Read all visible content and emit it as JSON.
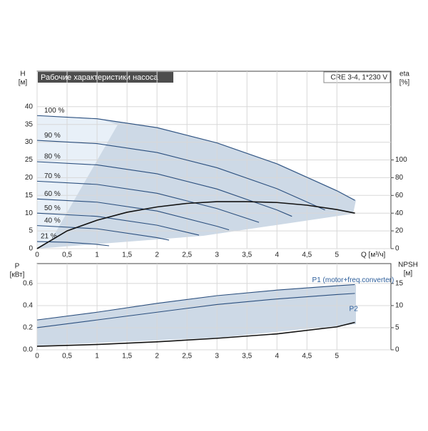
{
  "chart_data": [
    {
      "type": "line",
      "title": "Рабочие характеристики насоса",
      "subtitle": "CRE 3-4, 1*230 V",
      "ylabel": "H",
      "yunit": "[м]",
      "y2label": "eta",
      "y2unit": "[%]",
      "xlabel": "Q [м³/ч]",
      "xlim": [
        0,
        5.9
      ],
      "ylim": [
        0,
        50
      ],
      "y2lim": [
        0,
        200
      ],
      "grid": true,
      "xticks": [
        0,
        {
          "value": 0.5,
          "label": "0,5"
        },
        1,
        {
          "value": 1.5,
          "label": "1,5"
        },
        2,
        {
          "value": 2.5,
          "label": "2,5"
        },
        3,
        {
          "value": 3.5,
          "label": "3,5"
        },
        4,
        {
          "value": 4.5,
          "label": "4,5"
        },
        5
      ],
      "yticks": [
        0,
        5,
        10,
        15,
        20,
        25,
        30,
        35,
        40
      ],
      "y2ticks": [
        0,
        20,
        40,
        60,
        80,
        100
      ],
      "series": [
        {
          "name": "100 %",
          "color": "#2b4f7e",
          "x": [
            0,
            1,
            2,
            3,
            4,
            5,
            5.3
          ],
          "values": [
            37.5,
            36.6,
            34.1,
            29.8,
            23.9,
            16.3,
            13.6
          ]
        },
        {
          "name": "90 %",
          "color": "#2b4f7e",
          "x": [
            0,
            1,
            2,
            3,
            4,
            4.8
          ],
          "values": [
            30.5,
            29.6,
            27.1,
            22.8,
            16.9,
            10.9
          ]
        },
        {
          "name": "80 %",
          "color": "#2b4f7e",
          "x": [
            0,
            1,
            2,
            3,
            4,
            4.25
          ],
          "values": [
            24.5,
            23.6,
            21.1,
            16.8,
            10.9,
            9.1
          ]
        },
        {
          "name": "70 %",
          "color": "#2b4f7e",
          "x": [
            0,
            1,
            2,
            3,
            3.7
          ],
          "values": [
            19,
            18.1,
            15.6,
            11.3,
            7.4
          ]
        },
        {
          "name": "60 %",
          "color": "#2b4f7e",
          "x": [
            0,
            1,
            2,
            3,
            3.2
          ],
          "values": [
            14,
            13.1,
            10.6,
            6.3,
            5.3
          ]
        },
        {
          "name": "50 %",
          "color": "#2b4f7e",
          "x": [
            0,
            1,
            2,
            2.7
          ],
          "values": [
            10,
            9.1,
            6.6,
            3.8
          ]
        },
        {
          "name": "40 %",
          "color": "#2b4f7e",
          "x": [
            0,
            1,
            2,
            2.2
          ],
          "values": [
            6.5,
            5.6,
            3.1,
            2.4
          ]
        },
        {
          "name": "21 %",
          "color": "#2b4f7e",
          "x": [
            0,
            0.5,
            1,
            1.2
          ],
          "values": [
            2,
            1.8,
            1.2,
            0.8
          ]
        },
        {
          "color": "#111111",
          "axis": "y2",
          "x": [
            0,
            0.5,
            1,
            1.5,
            2,
            2.5,
            3,
            3.5,
            4,
            4.5,
            5,
            5.3
          ],
          "values": [
            0,
            20,
            32,
            41,
            47,
            51,
            53,
            53,
            52,
            49,
            44,
            40
          ]
        }
      ]
    },
    {
      "type": "line",
      "ylabel": "P",
      "yunit": "[кВт]",
      "y2label": "NPSH",
      "y2unit": "[м]",
      "xlim": [
        0,
        5.9
      ],
      "ylim": [
        0,
        0.78
      ],
      "y2lim": [
        0,
        19.5
      ],
      "grid": true,
      "xticks": [
        0,
        {
          "value": 0.5,
          "label": "0,5"
        },
        1,
        {
          "value": 1.5,
          "label": "1,5"
        },
        2,
        {
          "value": 2.5,
          "label": "2,5"
        },
        3,
        {
          "value": 3.5,
          "label": "3,5"
        },
        4,
        {
          "value": 4.5,
          "label": "4,5"
        },
        5
      ],
      "yticks": [
        {
          "value": 0,
          "label": "0.0"
        },
        0.2,
        0.4,
        0.6
      ],
      "y2ticks": [
        0,
        5,
        10,
        15
      ],
      "series": [
        {
          "name": "P1 (motor+freq.converter)",
          "color": "#2b4f7e",
          "x": [
            0,
            1,
            2,
            3,
            4,
            5,
            5.3
          ],
          "values": [
            0.27,
            0.34,
            0.42,
            0.49,
            0.54,
            0.58,
            0.59
          ]
        },
        {
          "name": "P2",
          "color": "#2b4f7e",
          "x": [
            0,
            1,
            2,
            3,
            4,
            5,
            5.3
          ],
          "values": [
            0.2,
            0.27,
            0.34,
            0.41,
            0.46,
            0.5,
            0.51
          ]
        },
        {
          "color": "#111111",
          "axis": "y2",
          "x": [
            0,
            1,
            2,
            3,
            4,
            5,
            5.3
          ],
          "values": [
            0.8,
            1.2,
            1.8,
            2.6,
            3.6,
            5.2,
            6.2
          ]
        }
      ]
    }
  ]
}
